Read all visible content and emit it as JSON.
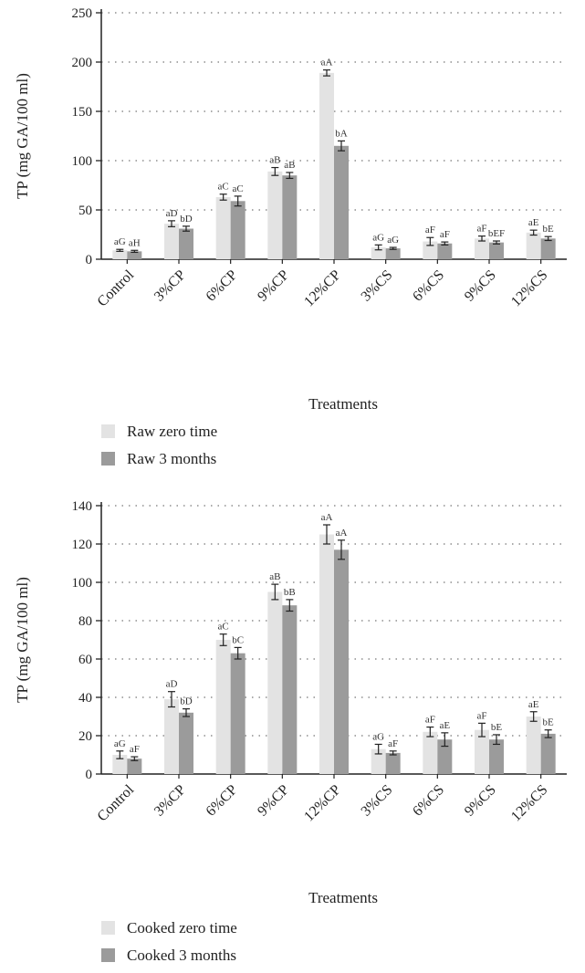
{
  "colors": {
    "zero_time": "#e3e3e3",
    "three_months": "#9b9b9b",
    "axis": "#222222",
    "grid": "#777777"
  },
  "chart_data": [
    {
      "type": "bar",
      "xlabel": "Treatments",
      "ylabel": "TP (mg GA/100 ml)",
      "ylim": [
        0,
        250
      ],
      "yticks": [
        0,
        50,
        100,
        150,
        200,
        250
      ],
      "grid": "horizontal dotted",
      "legend_position": "bottom-left",
      "categories": [
        "Control",
        "3%CP",
        "6%CP",
        "9%CP",
        "12%CP",
        "3%CS",
        "6%CS",
        "9%CS",
        "12%CS"
      ],
      "series": [
        {
          "name": "Raw zero time",
          "values": [
            9,
            36,
            63,
            89,
            189,
            12,
            18,
            21,
            27
          ],
          "errors": [
            1,
            3,
            3,
            4,
            3,
            2.5,
            4,
            2.5,
            2.5
          ],
          "labels": [
            "aG",
            "aD",
            "aC",
            "aB",
            "aA",
            "aG",
            "aF",
            "aF",
            "aE"
          ]
        },
        {
          "name": "Raw 3 months",
          "values": [
            8,
            31,
            59,
            85,
            115,
            11,
            16,
            17,
            21
          ],
          "errors": [
            1,
            2.5,
            5,
            3,
            5,
            1,
            1.5,
            1.5,
            2
          ],
          "labels": [
            "aH",
            "bD",
            "aC",
            "aB",
            "bA",
            "aG",
            "aF",
            "bEF",
            "bE"
          ]
        }
      ]
    },
    {
      "type": "bar",
      "xlabel": "Treatments",
      "ylabel": "TP (mg GA/100 ml)",
      "ylim": [
        0,
        140
      ],
      "yticks": [
        0,
        20,
        40,
        60,
        80,
        100,
        120,
        140
      ],
      "grid": "horizontal dotted",
      "legend_position": "bottom-left",
      "categories": [
        "Control",
        "3%CP",
        "6%CP",
        "9%CP",
        "12%CP",
        "3%CS",
        "6%CS",
        "9%CS",
        "12%CS"
      ],
      "series": [
        {
          "name": "Cooked zero time",
          "values": [
            10,
            39,
            70,
            95,
            125,
            13,
            22,
            23,
            30
          ],
          "errors": [
            2,
            4,
            3,
            4,
            5,
            2.5,
            2.5,
            3.5,
            2.5
          ],
          "labels": [
            "aG",
            "aD",
            "aC",
            "aB",
            "aA",
            "aG",
            "aF",
            "aF",
            "aE"
          ]
        },
        {
          "name": "Cooked 3 months",
          "values": [
            8,
            32,
            63,
            88,
            117,
            11,
            18,
            18,
            21
          ],
          "errors": [
            1,
            2,
            3,
            3,
            5,
            1,
            3.5,
            2.5,
            2
          ],
          "labels": [
            "aF",
            "bD",
            "bC",
            "bB",
            "aA",
            "aF",
            "aE",
            "bE",
            "bE"
          ]
        }
      ]
    }
  ]
}
